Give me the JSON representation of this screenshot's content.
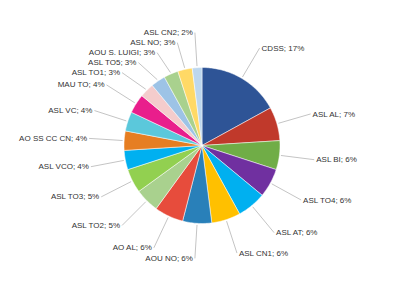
{
  "chart_data": {
    "type": "pie",
    "categories": [
      "CDSS; 17%",
      "ASL AL; 7%",
      "ASL BI; 6%",
      "ASL TO4; 6%",
      "ASL AT; 6%",
      "ASL CN1; 6%",
      "AOU NO; 6%",
      "AO AL; 6%",
      "ASL TO2; 5%",
      "ASL TO3; 5%",
      "ASL VCO; 4%",
      "AO SS CC CN; 4%",
      "ASL VC; 4%",
      "MAU TO; 4%",
      "ASL TO1; 3%",
      "ASL TO5; 3%",
      "AOU S. LUIGI; 3%",
      "ASL NO; 3%",
      "ASL CN2; 2%"
    ],
    "values": [
      17,
      7,
      6,
      6,
      6,
      6,
      6,
      6,
      5,
      5,
      4,
      4,
      4,
      4,
      3,
      3,
      3,
      3,
      2
    ],
    "colors": [
      "#2e5496",
      "#c0392b",
      "#70ad47",
      "#7030a0",
      "#00b0f0",
      "#ffc000",
      "#2980b9",
      "#e74c3c",
      "#a9d18e",
      "#92d050",
      "#00b0f0",
      "#e67e22",
      "#5bc8db",
      "#e91e8c",
      "#f4cccc",
      "#9dc3e6",
      "#a9d18e",
      "#ffd966",
      "#bdd7ee"
    ]
  }
}
